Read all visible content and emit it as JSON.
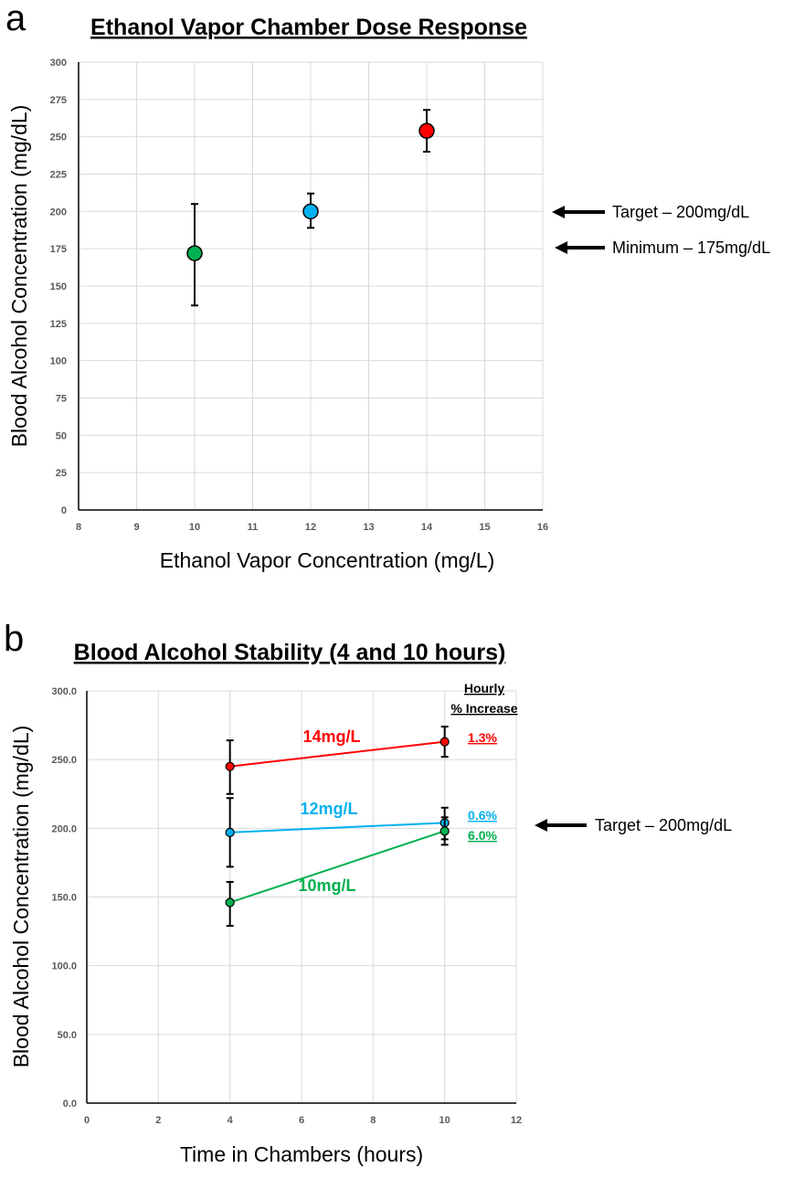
{
  "chart_data": [
    {
      "panel": "a",
      "type": "scatter",
      "title": "Ethanol Vapor Chamber Dose Response",
      "xlabel": "Ethanol Vapor Concentration (mg/L)",
      "ylabel": "Blood Alcohol Concentration (mg/dL)",
      "xlim": [
        8,
        16
      ],
      "ylim": [
        0,
        300
      ],
      "xticks": [
        "8",
        "9",
        "10",
        "11",
        "12",
        "13",
        "14",
        "15",
        "16"
      ],
      "yticks": [
        "0",
        "25",
        "50",
        "75",
        "100",
        "125",
        "150",
        "175",
        "200",
        "225",
        "250",
        "275",
        "300"
      ],
      "grid": true,
      "points": [
        {
          "x": 10,
          "y": 172,
          "err_low": 137,
          "err_high": 205,
          "color": "#00b050"
        },
        {
          "x": 12,
          "y": 200,
          "err_low": 189,
          "err_high": 212,
          "color": "#00b0f0"
        },
        {
          "x": 14,
          "y": 254,
          "err_low": 240,
          "err_high": 268,
          "color": "#ff0000"
        }
      ],
      "annotations": [
        {
          "text": "Target – 200mg/dL",
          "y": 200
        },
        {
          "text": "Minimum – 175mg/dL",
          "y": 175
        }
      ]
    },
    {
      "panel": "b",
      "type": "line",
      "title": "Blood Alcohol Stability (4 and 10 hours)",
      "xlabel": "Time in Chambers (hours)",
      "ylabel": "Blood Alcohol Concentration (mg/dL)",
      "xlim": [
        0,
        12
      ],
      "ylim": [
        0,
        300
      ],
      "xticks": [
        "0",
        "2",
        "4",
        "6",
        "8",
        "10",
        "12"
      ],
      "yticks": [
        "0.0",
        "50.0",
        "100.0",
        "150.0",
        "200.0",
        "250.0",
        "300.0"
      ],
      "grid": true,
      "header": [
        "Hourly",
        "% Increase"
      ],
      "series": [
        {
          "name": "14mg/L",
          "color": "#ff0000",
          "x": [
            4,
            10
          ],
          "y": [
            245,
            263
          ],
          "err_low": [
            225,
            252
          ],
          "err_high": [
            264,
            274
          ],
          "pct": "1.3%"
        },
        {
          "name": "12mg/L",
          "color": "#00b0f0",
          "x": [
            4,
            10
          ],
          "y": [
            197,
            204
          ],
          "err_low": [
            172,
            192
          ],
          "err_high": [
            222,
            215
          ],
          "pct": "0.6%"
        },
        {
          "name": "10mg/L",
          "color": "#00b050",
          "x": [
            4,
            10
          ],
          "y": [
            146,
            198
          ],
          "err_low": [
            129,
            188
          ],
          "err_high": [
            161,
            208
          ],
          "pct": "6.0%"
        }
      ],
      "annotations": [
        {
          "text": "Target – 200mg/dL",
          "y": 200
        }
      ]
    }
  ]
}
